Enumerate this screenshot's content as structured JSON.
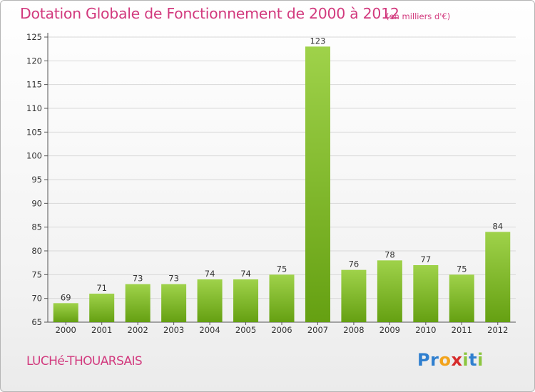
{
  "header": {
    "title": "Dotation Globale de Fonctionnement de 2000 à 2012",
    "subtitle": "(en milliers d'€)"
  },
  "footer": {
    "commune": "LUCHé-THOUARSAIS",
    "logo_letters": [
      {
        "char": "P",
        "color": "#2f7fcf"
      },
      {
        "char": "r",
        "color": "#2f7fcf"
      },
      {
        "char": "o",
        "color": "#f2a31b"
      },
      {
        "char": "x",
        "color": "#d62b2b"
      },
      {
        "char": "i",
        "color": "#8cc63f"
      },
      {
        "char": "t",
        "color": "#2f7fcf"
      },
      {
        "char": "i",
        "color": "#8cc63f"
      }
    ]
  },
  "colors": {
    "bar_light": "#9fd24a",
    "bar_dark": "#65a012",
    "axis": "#555555",
    "grid": "#d9d9d9",
    "text": "#333333"
  },
  "chart_data": {
    "type": "bar",
    "title": "Dotation Globale de Fonctionnement de 2000 à 2012",
    "subtitle": "(en milliers d'€)",
    "xlabel": "",
    "ylabel": "",
    "categories": [
      "2000",
      "2001",
      "2002",
      "2003",
      "2004",
      "2005",
      "2006",
      "2007",
      "2008",
      "2009",
      "2010",
      "2011",
      "2012"
    ],
    "values": [
      69,
      71,
      73,
      73,
      74,
      74,
      75,
      123,
      76,
      78,
      77,
      75,
      84
    ],
    "ylim": [
      65,
      125
    ],
    "yticks": [
      65,
      70,
      75,
      80,
      85,
      90,
      95,
      100,
      105,
      110,
      115,
      120,
      125
    ],
    "grid": true,
    "data_labels": true
  }
}
